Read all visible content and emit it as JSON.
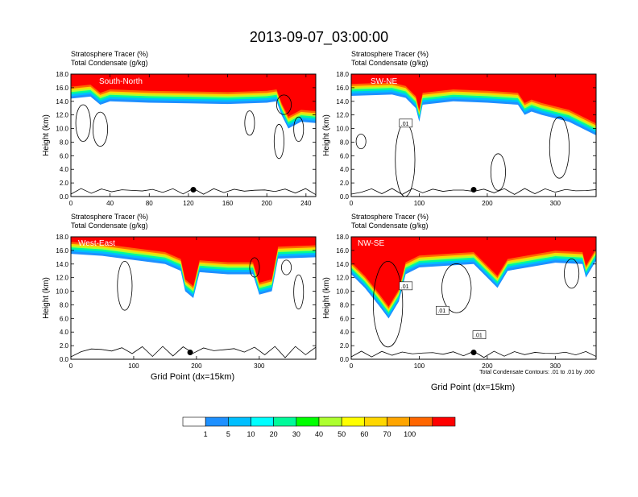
{
  "figure": {
    "title": "2013-09-07_03:00:00",
    "shared_xlabel": "Grid Point (dx=15km)",
    "contour_note": "Total Condensate Contours: .01 to .01 by .000"
  },
  "colorbar": {
    "labels": [
      "1",
      "5",
      "10",
      "20",
      "30",
      "40",
      "50",
      "60",
      "70",
      "100"
    ],
    "colors": [
      "#ffffff",
      "#1e90ff",
      "#00bfff",
      "#00ffff",
      "#00fa9a",
      "#00ff00",
      "#adff2f",
      "#ffff00",
      "#ffd700",
      "#ffa500",
      "#ff6600",
      "#ff0000"
    ]
  },
  "chart_data": [
    {
      "type": "heatmap",
      "panel": "South-North",
      "subtitle_line1": "Stratosphere Tracer   (%)",
      "subtitle_line2": "Total Condensate   (g/kg)",
      "ylabel": "Height (km)",
      "xlabel": "",
      "xlim": [
        0,
        250
      ],
      "ylim": [
        0,
        18
      ],
      "xticks": [
        0,
        40,
        80,
        120,
        160,
        200,
        240
      ],
      "xtick_labels": [
        "0",
        "40",
        "80",
        "120",
        "160",
        "200",
        "240"
      ],
      "yticks": [
        0,
        2,
        4,
        6,
        8,
        10,
        12,
        14,
        16,
        18
      ],
      "ytick_labels": [
        "0.0",
        "2.0",
        "4.0",
        "6.0",
        "8.0",
        "10.0",
        "12.0",
        "14.0",
        "16.0",
        "18.0"
      ],
      "tropopause_km": [
        [
          0,
          14.4
        ],
        [
          20,
          14.7
        ],
        [
          30,
          13.5
        ],
        [
          40,
          14.0
        ],
        [
          80,
          13.8
        ],
        [
          120,
          13.7
        ],
        [
          160,
          13.6
        ],
        [
          200,
          13.8
        ],
        [
          210,
          14.0
        ],
        [
          215,
          12.0
        ],
        [
          222,
          10.0
        ],
        [
          235,
          11.0
        ],
        [
          250,
          10.8
        ]
      ],
      "marker_x": 125,
      "contour_labels": []
    },
    {
      "type": "heatmap",
      "panel": "SW-NE",
      "subtitle_line1": "Stratosphere Tracer   (%)",
      "subtitle_line2": "Total Condensate   (g/kg)",
      "ylabel": "Height (km)",
      "xlabel": "",
      "xlim": [
        0,
        360
      ],
      "ylim": [
        0,
        18
      ],
      "xticks": [
        0,
        100,
        200,
        300
      ],
      "xtick_labels": [
        "0",
        "100",
        "200",
        "300"
      ],
      "yticks": [
        0,
        2,
        4,
        6,
        8,
        10,
        12,
        14,
        16,
        18
      ],
      "ytick_labels": [
        "0.0",
        "2.0",
        "4.0",
        "6.0",
        "8.0",
        "10.0",
        "12.0",
        "14.0",
        "16.0",
        "18.0"
      ],
      "tropopause_km": [
        [
          0,
          14.8
        ],
        [
          60,
          15.0
        ],
        [
          80,
          14.5
        ],
        [
          95,
          13.0
        ],
        [
          100,
          11.0
        ],
        [
          105,
          13.5
        ],
        [
          150,
          14.0
        ],
        [
          200,
          13.8
        ],
        [
          245,
          13.5
        ],
        [
          255,
          12.0
        ],
        [
          265,
          12.5
        ],
        [
          280,
          12.0
        ],
        [
          320,
          11.0
        ],
        [
          360,
          9.0
        ]
      ],
      "marker_x": 180,
      "contour_labels": [
        ".01"
      ]
    },
    {
      "type": "heatmap",
      "panel": "West-East",
      "subtitle_line1": "Stratosphere Tracer   (%)",
      "subtitle_line2": "Total Condensate   (g/kg)",
      "ylabel": "Height (km)",
      "xlabel": "Grid Point (dx=15km)",
      "xlim": [
        0,
        390
      ],
      "ylim": [
        0,
        18
      ],
      "xticks": [
        0,
        100,
        200,
        300
      ],
      "xtick_labels": [
        "0",
        "100",
        "200",
        "300"
      ],
      "yticks": [
        0,
        2,
        4,
        6,
        8,
        10,
        12,
        14,
        16,
        18
      ],
      "ytick_labels": [
        "0.0",
        "2.0",
        "4.0",
        "6.0",
        "8.0",
        "10.0",
        "12.0",
        "14.0",
        "16.0",
        "18.0"
      ],
      "tropopause_km": [
        [
          0,
          15.5
        ],
        [
          50,
          15.2
        ],
        [
          100,
          14.6
        ],
        [
          150,
          14.0
        ],
        [
          175,
          13.0
        ],
        [
          182,
          10.0
        ],
        [
          195,
          9.0
        ],
        [
          205,
          12.8
        ],
        [
          250,
          12.5
        ],
        [
          290,
          12.5
        ],
        [
          300,
          9.5
        ],
        [
          320,
          10.0
        ],
        [
          330,
          14.8
        ],
        [
          390,
          15.0
        ]
      ],
      "marker_x": 190,
      "contour_labels": []
    },
    {
      "type": "heatmap",
      "panel": "NW-SE",
      "subtitle_line1": "Stratosphere Tracer   (%)",
      "subtitle_line2": "Total Condensate   (g/kg)",
      "ylabel": "Height (km)",
      "xlabel": "Grid Point (dx=15km)",
      "xlim": [
        0,
        360
      ],
      "ylim": [
        0,
        18
      ],
      "xticks": [
        0,
        100,
        200,
        300
      ],
      "xtick_labels": [
        "0",
        "100",
        "200",
        "300"
      ],
      "yticks": [
        0,
        2,
        4,
        6,
        8,
        10,
        12,
        14,
        16,
        18
      ],
      "ytick_labels": [
        "0.0",
        "2.0",
        "4.0",
        "6.0",
        "8.0",
        "10.0",
        "12.0",
        "14.0",
        "16.0",
        "18.0"
      ],
      "tropopause_km": [
        [
          0,
          12.5
        ],
        [
          20,
          10.5
        ],
        [
          40,
          8.0
        ],
        [
          55,
          6.0
        ],
        [
          70,
          8.5
        ],
        [
          80,
          12.5
        ],
        [
          100,
          13.5
        ],
        [
          180,
          14.0
        ],
        [
          200,
          12.0
        ],
        [
          215,
          10.5
        ],
        [
          230,
          13.0
        ],
        [
          300,
          14.2
        ],
        [
          340,
          14.0
        ],
        [
          345,
          12.0
        ],
        [
          360,
          14.5
        ]
      ],
      "marker_x": 180,
      "contour_labels": [
        ".01",
        ".01",
        ".01"
      ]
    }
  ]
}
